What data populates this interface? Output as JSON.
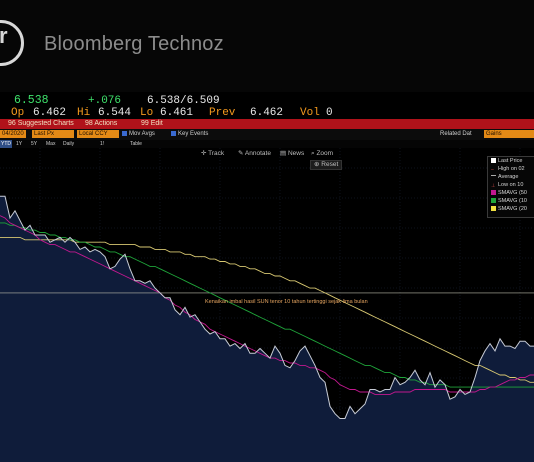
{
  "brand": {
    "logo_icon": "bloomberg-technoz-logo-icon",
    "name": "Bloomberg Technoz"
  },
  "quote": {
    "last": "6.538",
    "change": "+.076",
    "bid_ask": "6.538/6.509",
    "open_label": "Op",
    "open": "6.462",
    "high_label": "Hi",
    "high": "6.544",
    "low_label": "Lo",
    "low": "6.461",
    "prev_label": "Prev",
    "prev": "6.462",
    "vol_label": "Vol",
    "vol": "0"
  },
  "actions": {
    "suggested": "96 Suggested Charts",
    "actions": "98 Actions",
    "edit": "99 Edit"
  },
  "options": {
    "date": "04/2020",
    "last_px": "Last Px",
    "local_ccy": "Local CCY",
    "mov_avgs": "Mov Avgs",
    "key_events": "Key Events",
    "related_dat": "Related Dat",
    "related_value": "Gains"
  },
  "range": {
    "tabs": [
      "YTD",
      "1Y",
      "5Y",
      "Max",
      "Daily",
      "1!",
      "Table"
    ],
    "selected_index": 0
  },
  "toolbar": {
    "track": "Track",
    "annotate": "Annotate",
    "news": "News",
    "zoom": "Zoom",
    "reset": "Reset"
  },
  "legend": {
    "items": [
      {
        "label": "Last Price",
        "color": "#ffffff"
      },
      {
        "label": "High on 02",
        "color": ""
      },
      {
        "label": "Average",
        "color": ""
      },
      {
        "label": "Low on 10",
        "color": ""
      },
      {
        "label": "SMAVG (50",
        "color": "#c2188f"
      },
      {
        "label": "SMAVG (10",
        "color": "#1fa53a"
      },
      {
        "label": "SMAVG (20",
        "color": "#f0e040"
      }
    ]
  },
  "annotation": {
    "text": "Kenaikan imbal hasil SUN tenor 10 tahun tertinggi sejak lima bulan"
  },
  "colors": {
    "price_fill": "#0f1c3a",
    "price_line": "#c8ccd6",
    "sma50": "#c2188f",
    "sma100": "#1fa53a",
    "sma200": "#d8c872",
    "average": "#b8b8a8"
  },
  "chart_data": {
    "type": "area",
    "x": [
      0,
      5,
      10,
      15,
      20,
      25,
      30,
      35,
      40,
      45,
      50,
      55,
      60,
      65,
      70,
      75,
      80,
      85,
      90,
      95,
      100,
      105,
      110,
      115,
      120,
      125,
      130,
      135,
      140,
      145,
      150,
      155,
      160,
      165,
      170,
      175,
      180,
      185,
      190,
      195,
      200,
      205,
      210,
      215,
      220,
      225,
      230,
      235,
      240,
      245,
      250,
      255,
      260,
      265,
      270,
      275,
      280,
      285,
      290,
      295,
      300,
      305,
      310,
      315,
      320,
      325,
      330,
      335,
      340,
      345,
      350,
      355,
      360,
      365,
      370,
      375,
      380,
      385,
      390,
      395,
      400,
      405,
      410,
      415,
      420,
      425,
      430,
      435,
      440,
      445,
      450,
      455,
      460,
      465,
      470,
      475,
      480,
      485,
      490,
      495,
      500,
      505,
      510,
      515,
      520,
      525,
      530,
      534
    ],
    "series": [
      {
        "name": "Last Price",
        "values": [
          6.8,
          6.8,
          6.71,
          6.74,
          6.7,
          6.66,
          6.68,
          6.64,
          6.64,
          6.64,
          6.61,
          6.62,
          6.63,
          6.61,
          6.63,
          6.61,
          6.58,
          6.59,
          6.57,
          6.58,
          6.57,
          6.55,
          6.5,
          6.51,
          6.54,
          6.56,
          6.5,
          6.45,
          6.45,
          6.44,
          6.45,
          6.42,
          6.4,
          6.38,
          6.38,
          6.33,
          6.31,
          6.34,
          6.3,
          6.31,
          6.28,
          6.25,
          6.23,
          6.24,
          6.21,
          6.21,
          6.18,
          6.19,
          6.17,
          6.19,
          6.15,
          6.15,
          6.17,
          6.15,
          6.13,
          6.18,
          6.15,
          6.1,
          6.09,
          6.12,
          6.16,
          6.18,
          6.14,
          6.1,
          6.05,
          6.03,
          5.93,
          5.9,
          5.88,
          5.88,
          5.93,
          5.9,
          5.92,
          5.94,
          6.0,
          6.0,
          5.99,
          6.0,
          6.0,
          6.05,
          6.02,
          6.03,
          6.05,
          6.08,
          6.04,
          6.02,
          6.07,
          6.01,
          6.04,
          6.02,
          5.96,
          5.97,
          6.0,
          5.98,
          5.99,
          6.05,
          6.12,
          6.16,
          6.19,
          6.16,
          6.21,
          6.18,
          6.18,
          6.17,
          6.2,
          6.2,
          6.18,
          6.18
        ]
      },
      {
        "name": "SMAVG (50",
        "values": [
          6.72,
          6.71,
          6.69,
          6.68,
          6.67,
          6.66,
          6.65,
          6.64,
          6.62,
          6.61,
          6.6,
          6.6,
          6.59,
          6.58,
          6.57,
          6.57,
          6.56,
          6.55,
          6.54,
          6.53,
          6.52,
          6.51,
          6.5,
          6.49,
          6.48,
          6.47,
          6.46,
          6.45,
          6.44,
          6.43,
          6.42,
          6.41,
          6.4,
          6.38,
          6.37,
          6.35,
          6.34,
          6.32,
          6.31,
          6.29,
          6.28,
          6.27,
          6.25,
          6.24,
          6.23,
          6.22,
          6.21,
          6.2,
          6.19,
          6.18,
          6.17,
          6.16,
          6.15,
          6.14,
          6.13,
          6.13,
          6.12,
          6.12,
          6.11,
          6.11,
          6.1,
          6.1,
          6.09,
          6.09,
          6.08,
          6.07,
          6.05,
          6.04,
          6.02,
          6.01,
          6.0,
          6.0,
          5.99,
          5.99,
          5.99,
          5.98,
          5.98,
          5.98,
          5.98,
          5.99,
          5.99,
          5.99,
          5.99,
          6.0,
          6.0,
          6.0,
          6.0,
          6.0,
          6.0,
          6.0,
          5.99,
          5.99,
          5.99,
          5.99,
          5.99,
          5.99,
          6.0,
          6.0,
          6.01,
          6.01,
          6.02,
          6.03,
          6.04,
          6.04,
          6.05,
          6.05,
          6.06,
          6.06
        ]
      },
      {
        "name": "SMAVG (10",
        "values": [
          6.69,
          6.69,
          6.68,
          6.68,
          6.67,
          6.67,
          6.66,
          6.66,
          6.65,
          6.65,
          6.64,
          6.64,
          6.63,
          6.63,
          6.62,
          6.62,
          6.61,
          6.61,
          6.6,
          6.59,
          6.59,
          6.58,
          6.57,
          6.57,
          6.56,
          6.55,
          6.55,
          6.54,
          6.53,
          6.52,
          6.51,
          6.51,
          6.5,
          6.49,
          6.48,
          6.47,
          6.46,
          6.45,
          6.44,
          6.43,
          6.42,
          6.41,
          6.4,
          6.39,
          6.38,
          6.37,
          6.36,
          6.35,
          6.34,
          6.33,
          6.32,
          6.31,
          6.3,
          6.29,
          6.28,
          6.27,
          6.26,
          6.25,
          6.25,
          6.24,
          6.23,
          6.22,
          6.21,
          6.2,
          6.19,
          6.18,
          6.17,
          6.16,
          6.15,
          6.14,
          6.13,
          6.12,
          6.11,
          6.1,
          6.1,
          6.09,
          6.08,
          6.07,
          6.07,
          6.06,
          6.05,
          6.05,
          6.04,
          6.04,
          6.03,
          6.03,
          6.02,
          6.02,
          6.02,
          6.02,
          6.01,
          6.01,
          6.01,
          6.01,
          6.01,
          6.01,
          6.01,
          6.01,
          6.01,
          6.01,
          6.01,
          6.01,
          6.01,
          6.01,
          6.01,
          6.01,
          6.01,
          6.01
        ]
      },
      {
        "name": "SMAVG (20",
        "values": [
          6.63,
          6.63,
          6.63,
          6.63,
          6.63,
          6.62,
          6.62,
          6.62,
          6.62,
          6.62,
          6.62,
          6.62,
          6.62,
          6.62,
          6.62,
          6.61,
          6.61,
          6.61,
          6.61,
          6.61,
          6.61,
          6.61,
          6.6,
          6.6,
          6.6,
          6.6,
          6.6,
          6.6,
          6.59,
          6.59,
          6.59,
          6.58,
          6.58,
          6.58,
          6.57,
          6.57,
          6.57,
          6.56,
          6.56,
          6.55,
          6.55,
          6.55,
          6.54,
          6.54,
          6.53,
          6.53,
          6.52,
          6.52,
          6.51,
          6.51,
          6.5,
          6.5,
          6.49,
          6.48,
          6.48,
          6.47,
          6.47,
          6.46,
          6.45,
          6.45,
          6.44,
          6.43,
          6.42,
          6.42,
          6.41,
          6.4,
          6.39,
          6.38,
          6.37,
          6.36,
          6.35,
          6.34,
          6.33,
          6.32,
          6.31,
          6.3,
          6.29,
          6.28,
          6.27,
          6.26,
          6.25,
          6.24,
          6.23,
          6.22,
          6.21,
          6.2,
          6.19,
          6.18,
          6.17,
          6.16,
          6.15,
          6.14,
          6.13,
          6.12,
          6.11,
          6.1,
          6.1,
          6.09,
          6.08,
          6.07,
          6.06,
          6.06,
          6.05,
          6.05,
          6.04,
          6.04,
          6.03,
          6.03
        ]
      },
      {
        "name": "Average",
        "values": [
          6.4,
          6.4,
          6.4,
          6.4,
          6.4,
          6.4,
          6.4,
          6.4,
          6.4,
          6.4,
          6.4,
          6.4,
          6.4,
          6.4,
          6.4,
          6.4,
          6.4,
          6.4,
          6.4,
          6.4,
          6.4,
          6.4,
          6.4,
          6.4,
          6.4,
          6.4,
          6.4,
          6.4,
          6.4,
          6.4,
          6.4,
          6.4,
          6.4,
          6.4,
          6.4,
          6.4,
          6.4,
          6.4,
          6.4,
          6.4,
          6.4,
          6.4,
          6.4,
          6.4,
          6.4,
          6.4,
          6.4,
          6.4,
          6.4,
          6.4,
          6.4,
          6.4,
          6.4,
          6.4,
          6.4,
          6.4,
          6.4,
          6.4,
          6.4,
          6.4,
          6.4,
          6.4,
          6.4,
          6.4,
          6.4,
          6.4,
          6.4,
          6.4,
          6.4,
          6.4,
          6.4,
          6.4,
          6.4,
          6.4,
          6.4,
          6.4,
          6.4,
          6.4,
          6.4,
          6.4,
          6.4,
          6.4,
          6.4,
          6.4,
          6.4,
          6.4,
          6.4,
          6.4,
          6.4,
          6.4,
          6.4,
          6.4,
          6.4,
          6.4,
          6.4,
          6.4,
          6.4,
          6.4,
          6.4,
          6.4,
          6.4,
          6.4,
          6.4,
          6.4,
          6.4,
          6.4,
          6.4,
          6.4
        ]
      }
    ],
    "ylim": [
      5.7,
      7.0
    ],
    "grid": true,
    "legend_position": "top-right"
  }
}
